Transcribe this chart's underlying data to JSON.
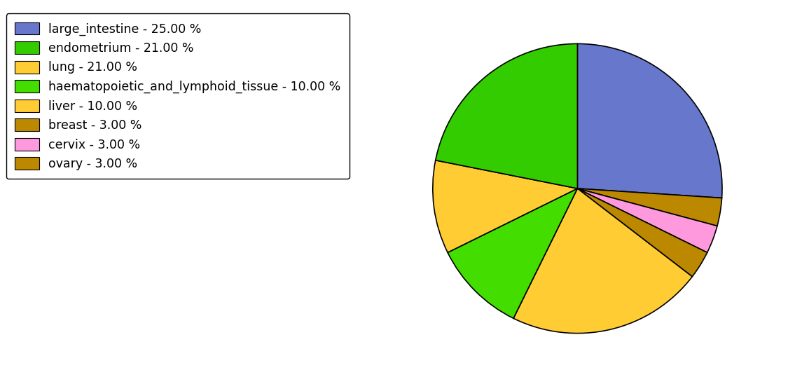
{
  "labels": [
    "large_intestine - 25.00 %",
    "endometrium - 21.00 %",
    "lung - 21.00 %",
    "haematopoietic_and_lymphoid_tissue - 10.00 %",
    "liver - 10.00 %",
    "breast - 3.00 %",
    "cervix - 3.00 %",
    "ovary - 3.00 %"
  ],
  "sizes": [
    25,
    21,
    21,
    10,
    10,
    3,
    3,
    3
  ],
  "pie_colors": [
    "#6677CC",
    "#33CC00",
    "#FFCC33",
    "#44DD00",
    "#FFCC33",
    "#BB8800",
    "#FF99DD",
    "#BB8800"
  ],
  "legend_colors": [
    "#6677CC",
    "#33CC00",
    "#FFCC33",
    "#44DD00",
    "#FFCC33",
    "#BB8800",
    "#FF99DD",
    "#BB8800"
  ],
  "startangle": 90,
  "figsize": [
    11.45,
    5.38
  ],
  "dpi": 100
}
